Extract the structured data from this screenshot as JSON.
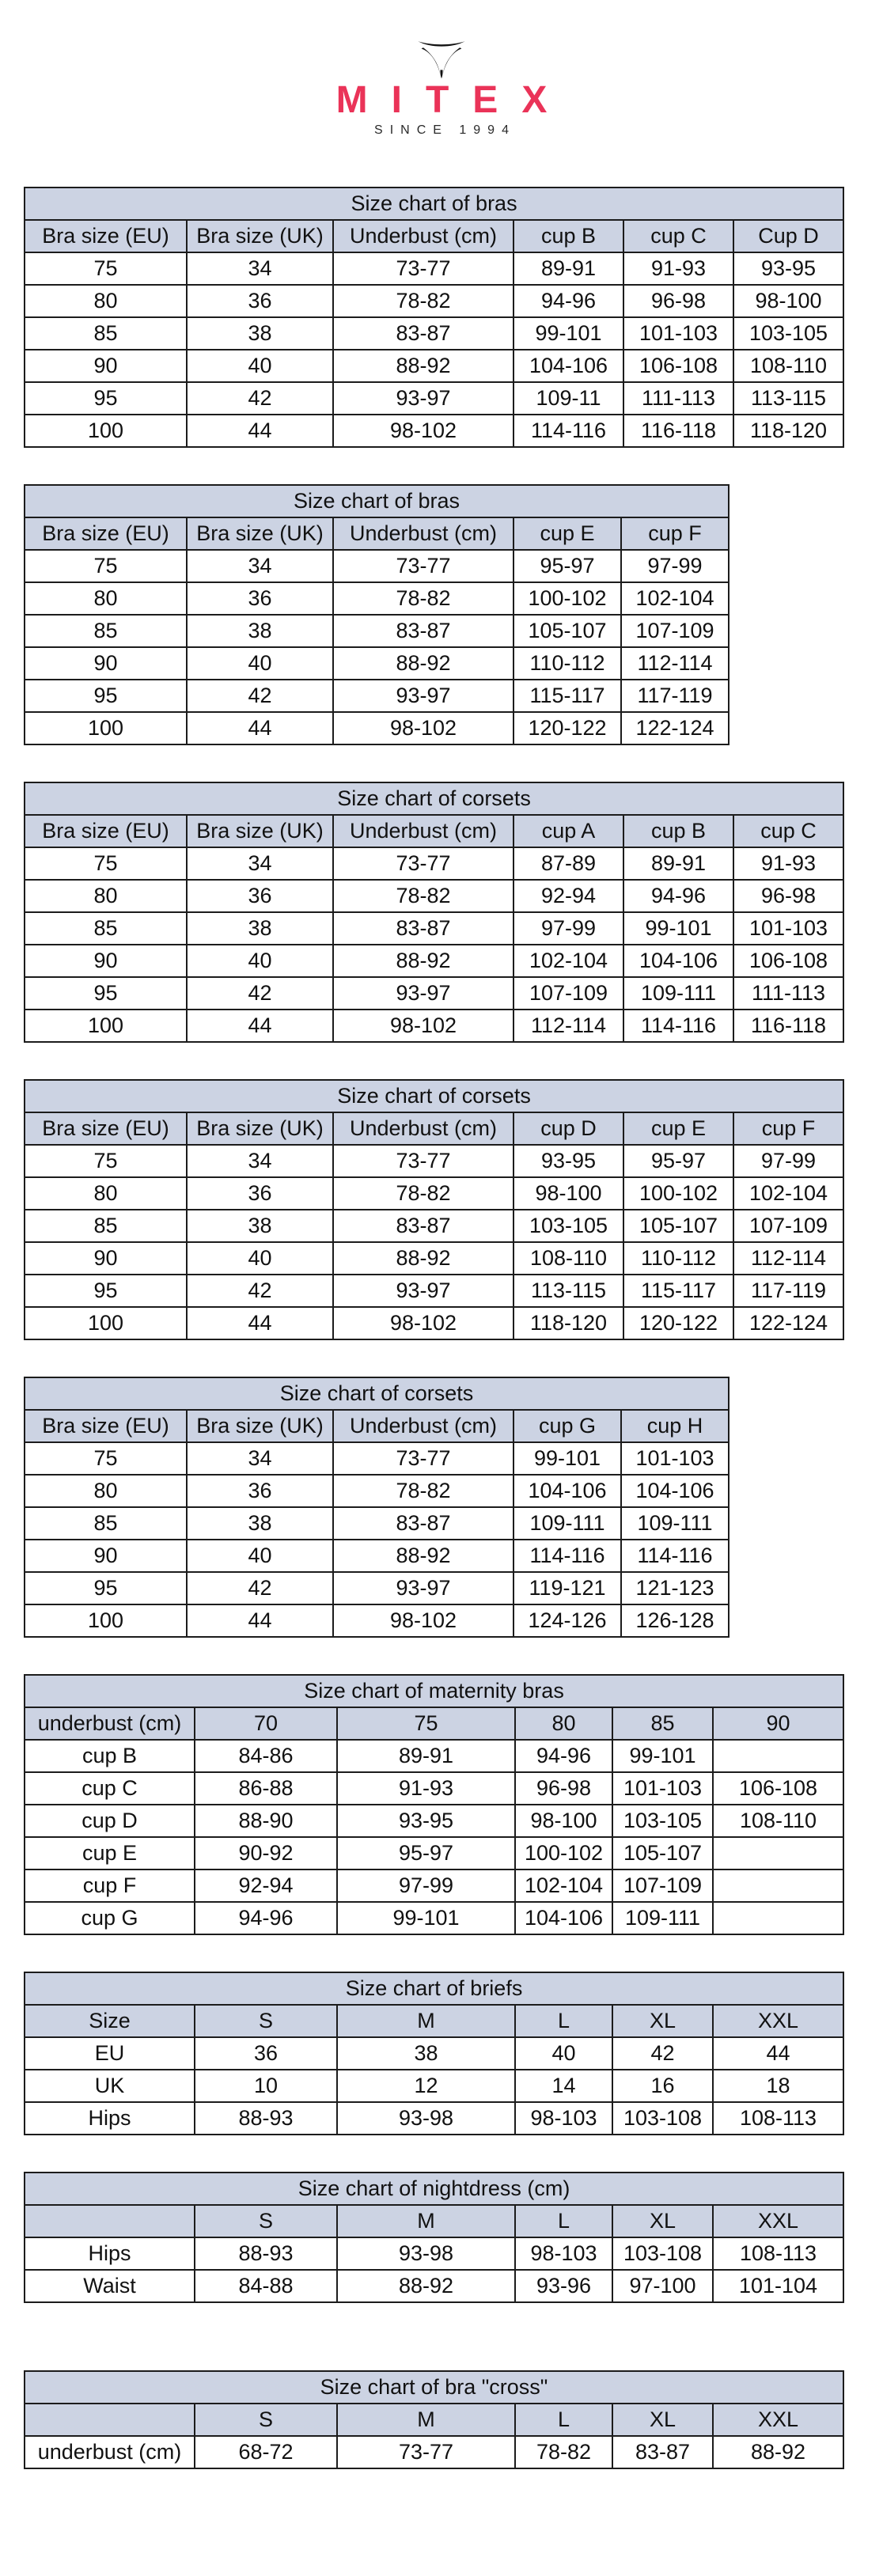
{
  "logo": {
    "brand": "MITEX",
    "tagline": "SINCE 1994",
    "brand_color": "#ea3358",
    "symbol": "mitex-bird-icon"
  },
  "colors": {
    "header_bg": "#ccd3e3",
    "border": "#1c1c1c",
    "brand": "#ea3358"
  },
  "tables": [
    {
      "title": "Size chart of bras",
      "variant": "a",
      "header": [
        "Bra size (EU)",
        "Bra size (UK)",
        "Underbust (cm)",
        "cup B",
        "cup C",
        "Cup D"
      ],
      "rows": [
        [
          "75",
          "34",
          "73-77",
          "89-91",
          "91-93",
          "93-95"
        ],
        [
          "80",
          "36",
          "78-82",
          "94-96",
          "96-98",
          "98-100"
        ],
        [
          "85",
          "38",
          "83-87",
          "99-101",
          "101-103",
          "103-105"
        ],
        [
          "90",
          "40",
          "88-92",
          "104-106",
          "106-108",
          "108-110"
        ],
        [
          "95",
          "42",
          "93-97",
          "109-11",
          "111-113",
          "113-115"
        ],
        [
          "100",
          "44",
          "98-102",
          "114-116",
          "116-118",
          "118-120"
        ]
      ]
    },
    {
      "title": "Size chart of bras",
      "variant": "b",
      "header": [
        "Bra size (EU)",
        "Bra size (UK)",
        "Underbust (cm)",
        "cup E",
        "cup F"
      ],
      "rows": [
        [
          "75",
          "34",
          "73-77",
          "95-97",
          "97-99"
        ],
        [
          "80",
          "36",
          "78-82",
          "100-102",
          "102-104"
        ],
        [
          "85",
          "38",
          "83-87",
          "105-107",
          "107-109"
        ],
        [
          "90",
          "40",
          "88-92",
          "110-112",
          "112-114"
        ],
        [
          "95",
          "42",
          "93-97",
          "115-117",
          "117-119"
        ],
        [
          "100",
          "44",
          "98-102",
          "120-122",
          "122-124"
        ]
      ]
    },
    {
      "title": "Size chart of corsets",
      "variant": "a",
      "header": [
        "Bra size (EU)",
        "Bra size (UK)",
        "Underbust (cm)",
        "cup A",
        "cup B",
        "cup C"
      ],
      "rows": [
        [
          "75",
          "34",
          "73-77",
          "87-89",
          "89-91",
          "91-93"
        ],
        [
          "80",
          "36",
          "78-82",
          "92-94",
          "94-96",
          "96-98"
        ],
        [
          "85",
          "38",
          "83-87",
          "97-99",
          "99-101",
          "101-103"
        ],
        [
          "90",
          "40",
          "88-92",
          "102-104",
          "104-106",
          "106-108"
        ],
        [
          "95",
          "42",
          "93-97",
          "107-109",
          "109-111",
          "111-113"
        ],
        [
          "100",
          "44",
          "98-102",
          "112-114",
          "114-116",
          "116-118"
        ]
      ]
    },
    {
      "title": "Size chart of corsets",
      "variant": "a",
      "header": [
        "Bra size (EU)",
        "Bra size (UK)",
        "Underbust (cm)",
        "cup D",
        "cup E",
        "cup F"
      ],
      "rows": [
        [
          "75",
          "34",
          "73-77",
          "93-95",
          "95-97",
          "97-99"
        ],
        [
          "80",
          "36",
          "78-82",
          "98-100",
          "100-102",
          "102-104"
        ],
        [
          "85",
          "38",
          "83-87",
          "103-105",
          "105-107",
          "107-109"
        ],
        [
          "90",
          "40",
          "88-92",
          "108-110",
          "110-112",
          "112-114"
        ],
        [
          "95",
          "42",
          "93-97",
          "113-115",
          "115-117",
          "117-119"
        ],
        [
          "100",
          "44",
          "98-102",
          "118-120",
          "120-122",
          "122-124"
        ]
      ]
    },
    {
      "title": "Size chart of corsets",
      "variant": "b",
      "header": [
        "Bra size (EU)",
        "Bra size (UK)",
        "Underbust (cm)",
        "cup G",
        "cup H"
      ],
      "rows": [
        [
          "75",
          "34",
          "73-77",
          "99-101",
          "101-103"
        ],
        [
          "80",
          "36",
          "78-82",
          "104-106",
          "104-106"
        ],
        [
          "85",
          "38",
          "83-87",
          "109-111",
          "109-111"
        ],
        [
          "90",
          "40",
          "88-92",
          "114-116",
          "114-116"
        ],
        [
          "95",
          "42",
          "93-97",
          "119-121",
          "121-123"
        ],
        [
          "100",
          "44",
          "98-102",
          "124-126",
          "126-128"
        ]
      ]
    },
    {
      "title": "Size chart of maternity bras",
      "variant": "c",
      "header": [
        "underbust (cm)",
        "70",
        "75",
        "80",
        "85",
        "90"
      ],
      "rows": [
        [
          "cup B",
          "84-86",
          "89-91",
          "94-96",
          "99-101",
          ""
        ],
        [
          "cup C",
          "86-88",
          "91-93",
          "96-98",
          "101-103",
          "106-108"
        ],
        [
          "cup D",
          "88-90",
          "93-95",
          "98-100",
          "103-105",
          "108-110"
        ],
        [
          "cup E",
          "90-92",
          "95-97",
          "100-102",
          "105-107",
          ""
        ],
        [
          "cup F",
          "92-94",
          "97-99",
          "102-104",
          "107-109",
          ""
        ],
        [
          "cup G",
          "94-96",
          "99-101",
          "104-106",
          "109-111",
          ""
        ]
      ]
    },
    {
      "title": "Size chart of briefs",
      "variant": "c",
      "header": [
        "Size",
        "S",
        "M",
        "L",
        "XL",
        "XXL"
      ],
      "rows": [
        [
          "EU",
          "36",
          "38",
          "40",
          "42",
          "44"
        ],
        [
          "UK",
          "10",
          "12",
          "14",
          "16",
          "18"
        ],
        [
          "Hips",
          "88-93",
          "93-98",
          "98-103",
          "103-108",
          "108-113"
        ]
      ]
    },
    {
      "title": "Size chart of nightdress (cm)",
      "variant": "c",
      "header": [
        "",
        "S",
        "M",
        "L",
        "XL",
        "XXL"
      ],
      "rows": [
        [
          "Hips",
          "88-93",
          "93-98",
          "98-103",
          "103-108",
          "108-113"
        ],
        [
          "Waist",
          "84-88",
          "88-92",
          "93-96",
          "97-100",
          "101-104"
        ]
      ]
    },
    {
      "title": "Size chart of bra \"cross\"",
      "variant": "c",
      "header": [
        "",
        "S",
        "M",
        "L",
        "XL",
        "XXL"
      ],
      "rows": [
        [
          "underbust (cm)",
          "68-72",
          "73-77",
          "78-82",
          "83-87",
          "88-92"
        ]
      ]
    }
  ]
}
